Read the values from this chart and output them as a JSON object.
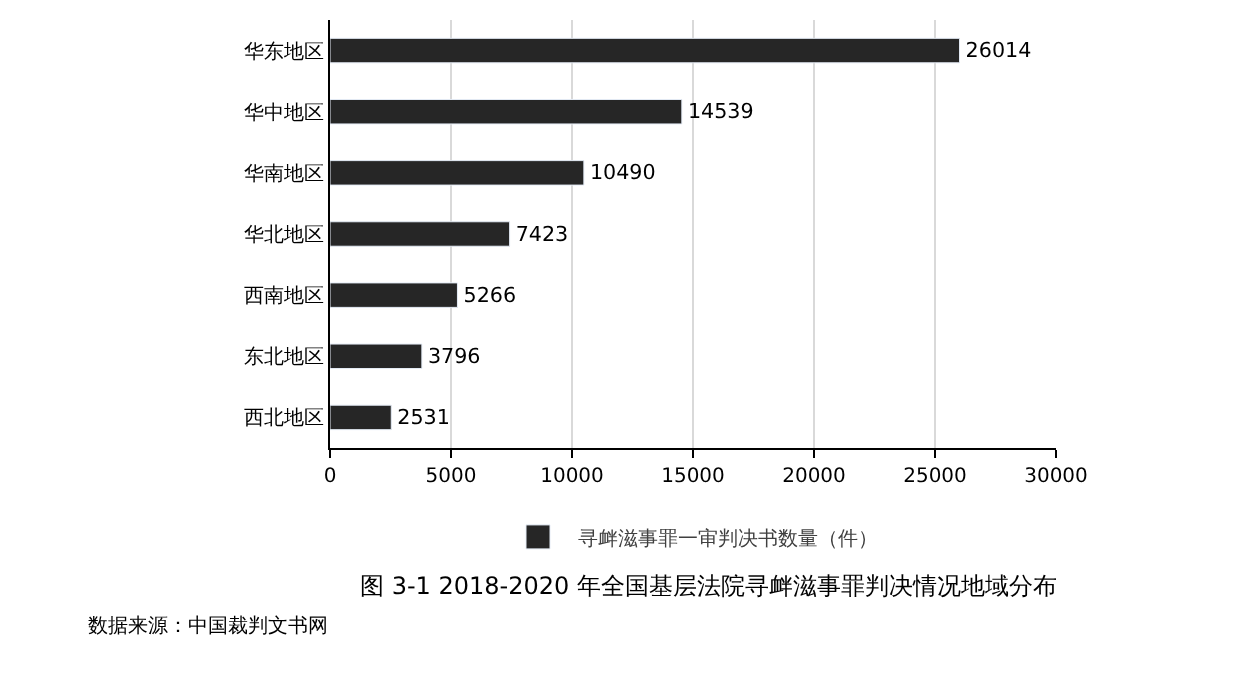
{
  "chart_data": {
    "type": "bar",
    "orientation": "horizontal",
    "title": "图 3-1 2018-2020 年全国基层法院寻衅滋事罪判决情况地域分布",
    "categories": [
      "华东地区",
      "华中地区",
      "华南地区",
      "华北地区",
      "西南地区",
      "东北地区",
      "西北地区"
    ],
    "series": [
      {
        "name": "寻衅滋事罪一审判决书数量（件）",
        "color": "#262626",
        "values": [
          26014,
          14539,
          10490,
          7423,
          5266,
          3796,
          2531
        ]
      }
    ],
    "xlim": [
      0,
      30000
    ],
    "xticks": [
      0,
      5000,
      10000,
      15000,
      20000,
      25000,
      30000
    ],
    "grid": "x",
    "legend": "bottom",
    "data_labels": true,
    "annotations": [
      "数据来源：中国裁判文书网"
    ]
  }
}
